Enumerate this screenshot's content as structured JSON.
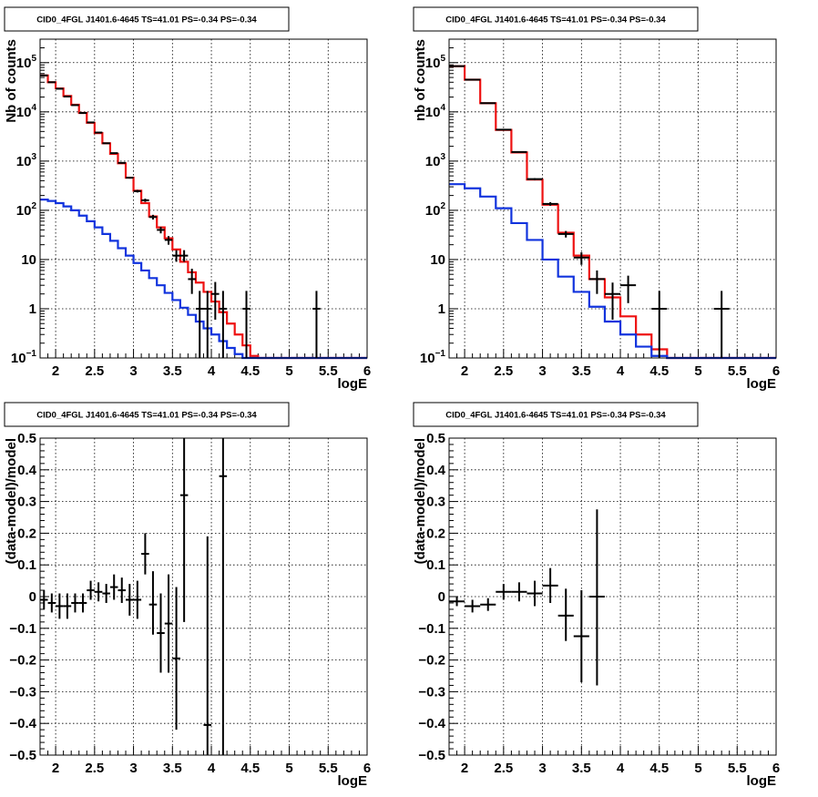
{
  "colors": {
    "model_total": "#ee1111",
    "model_source": "#1133dd",
    "data": "#000000",
    "grid": "#000000"
  },
  "chart_data": [
    {
      "id": "counts_left",
      "type": "line",
      "title": "CID0_4FGL J1401.6-4645 TS=41.01 PS=-0.34 PS=-0.34",
      "xlabel": "logE",
      "ylabel": "Nb of counts",
      "xlim": [
        1.8,
        6
      ],
      "ylim": [
        0.1,
        300000
      ],
      "yscale": "log",
      "grid": true,
      "xticks": [
        "2",
        "2.5",
        "3",
        "3.5",
        "4",
        "4.5",
        "5",
        "5.5",
        "6"
      ],
      "yticks": [
        {
          "v": 0.1,
          "b": "10",
          "e": "−1"
        },
        {
          "v": 1,
          "b": "1",
          "e": ""
        },
        {
          "v": 10,
          "b": "10",
          "e": ""
        },
        {
          "v": 100,
          "b": "10",
          "e": "2"
        },
        {
          "v": 1000,
          "b": "10",
          "e": "3"
        },
        {
          "v": 10000,
          "b": "10",
          "e": "4"
        },
        {
          "v": 100000,
          "b": "10",
          "e": "5"
        }
      ],
      "bin_edges": [
        1.8,
        1.9,
        2.0,
        2.1,
        2.2,
        2.3,
        2.4,
        2.5,
        2.6,
        2.7,
        2.8,
        2.9,
        3.0,
        3.1,
        3.2,
        3.3,
        3.4,
        3.5,
        3.6,
        3.7,
        3.8,
        3.9,
        4.0,
        4.1,
        4.2,
        4.3,
        4.4,
        4.5,
        4.6,
        6.0
      ],
      "series": [
        {
          "name": "",
          "kind": "model_total",
          "values": [
            55000,
            40000,
            30000,
            21000,
            14000,
            9500,
            6000,
            3700,
            2300,
            1400,
            900,
            460,
            250,
            140,
            75,
            45,
            27,
            16,
            9,
            5.5,
            3.4,
            2.2,
            1.4,
            0.85,
            0.5,
            0.3,
            0.18,
            0.11,
            0.09
          ]
        },
        {
          "name": "",
          "kind": "model_source",
          "values": [
            165,
            155,
            140,
            120,
            100,
            78,
            60,
            45,
            33,
            24,
            17,
            12,
            8.5,
            6,
            4.2,
            3,
            2.1,
            1.5,
            1.05,
            0.75,
            0.55,
            0.4,
            0.3,
            0.22,
            0.16,
            0.12,
            0.1,
            0.09,
            0.09
          ]
        }
      ],
      "points": [
        {
          "x": 1.85,
          "y": 55000,
          "xerr": 0.05,
          "ylo": 54800,
          "yhi": 55200
        },
        {
          "x": 1.95,
          "y": 40000,
          "xerr": 0.05,
          "ylo": 39800,
          "yhi": 40200
        },
        {
          "x": 2.05,
          "y": 29500,
          "xerr": 0.05,
          "ylo": 29300,
          "yhi": 29700
        },
        {
          "x": 2.15,
          "y": 20500,
          "xerr": 0.05,
          "ylo": 20350,
          "yhi": 20650
        },
        {
          "x": 2.25,
          "y": 13700,
          "xerr": 0.05,
          "ylo": 13580,
          "yhi": 13820
        },
        {
          "x": 2.35,
          "y": 9500,
          "xerr": 0.05,
          "ylo": 9400,
          "yhi": 9600
        },
        {
          "x": 2.45,
          "y": 6100,
          "xerr": 0.05,
          "ylo": 6020,
          "yhi": 6180
        },
        {
          "x": 2.55,
          "y": 3800,
          "xerr": 0.05,
          "ylo": 3740,
          "yhi": 3860
        },
        {
          "x": 2.65,
          "y": 2300,
          "xerr": 0.05,
          "ylo": 2250,
          "yhi": 2350
        },
        {
          "x": 2.75,
          "y": 1450,
          "xerr": 0.05,
          "ylo": 1410,
          "yhi": 1490
        },
        {
          "x": 2.85,
          "y": 920,
          "xerr": 0.05,
          "ylo": 890,
          "yhi": 950
        },
        {
          "x": 2.95,
          "y": 460,
          "xerr": 0.05,
          "ylo": 440,
          "yhi": 480
        },
        {
          "x": 3.05,
          "y": 245,
          "xerr": 0.05,
          "ylo": 230,
          "yhi": 260
        },
        {
          "x": 3.15,
          "y": 160,
          "xerr": 0.05,
          "ylo": 148,
          "yhi": 172
        },
        {
          "x": 3.25,
          "y": 73,
          "xerr": 0.05,
          "ylo": 65,
          "yhi": 81
        },
        {
          "x": 3.35,
          "y": 40,
          "xerr": 0.05,
          "ylo": 34,
          "yhi": 46
        },
        {
          "x": 3.45,
          "y": 25,
          "xerr": 0.05,
          "ylo": 20,
          "yhi": 30
        },
        {
          "x": 3.55,
          "y": 12,
          "xerr": 0.05,
          "ylo": 9,
          "yhi": 15.5
        },
        {
          "x": 3.65,
          "y": 12,
          "xerr": 0.05,
          "ylo": 9,
          "yhi": 15.5
        },
        {
          "x": 3.75,
          "y": 4,
          "xerr": 0.05,
          "ylo": 2,
          "yhi": 6.5
        },
        {
          "x": 3.85,
          "y": 1,
          "xerr": 0.05,
          "ylo": 0.1,
          "yhi": 2.3
        },
        {
          "x": 3.95,
          "y": 1,
          "xerr": 0.05,
          "ylo": 0.1,
          "yhi": 2.3
        },
        {
          "x": 4.05,
          "y": 2,
          "xerr": 0.05,
          "ylo": 0.6,
          "yhi": 3.5
        },
        {
          "x": 4.15,
          "y": 1,
          "xerr": 0.05,
          "ylo": 0.1,
          "yhi": 2.3
        },
        {
          "x": 4.45,
          "y": 1,
          "xerr": 0.05,
          "ylo": 0.1,
          "yhi": 2.3
        },
        {
          "x": 5.35,
          "y": 1,
          "xerr": 0.05,
          "ylo": 0.1,
          "yhi": 2.3
        }
      ]
    },
    {
      "id": "counts_right",
      "type": "line",
      "title": "CID0_4FGL J1401.6-4645 TS=41.01 PS=-0.34 PS=-0.34",
      "xlabel": "logE",
      "ylabel": "nb of counts",
      "xlim": [
        1.8,
        6
      ],
      "ylim": [
        0.1,
        300000
      ],
      "yscale": "log",
      "grid": true,
      "xticks": [
        "2",
        "2.5",
        "3",
        "3.5",
        "4",
        "4.5",
        "5",
        "5.5",
        "6"
      ],
      "yticks": [
        {
          "v": 0.1,
          "b": "10",
          "e": "−1"
        },
        {
          "v": 1,
          "b": "1",
          "e": ""
        },
        {
          "v": 10,
          "b": "10",
          "e": ""
        },
        {
          "v": 100,
          "b": "10",
          "e": "2"
        },
        {
          "v": 1000,
          "b": "10",
          "e": "3"
        },
        {
          "v": 10000,
          "b": "10",
          "e": "4"
        },
        {
          "v": 100000,
          "b": "10",
          "e": "5"
        }
      ],
      "bin_edges": [
        1.8,
        2.0,
        2.2,
        2.4,
        2.6,
        2.8,
        3.0,
        3.2,
        3.4,
        3.6,
        3.8,
        4.0,
        4.2,
        4.4,
        4.6,
        4.8,
        6.0
      ],
      "series": [
        {
          "name": "",
          "kind": "model_total",
          "values": [
            85000,
            45000,
            15000,
            4300,
            1500,
            420,
            130,
            35,
            12,
            4,
            1.7,
            0.7,
            0.3,
            0.15,
            0.1,
            0.1
          ]
        },
        {
          "name": "",
          "kind": "model_source",
          "values": [
            340,
            280,
            190,
            110,
            55,
            25,
            10,
            4.5,
            2.2,
            1.1,
            0.55,
            0.3,
            0.17,
            0.11,
            0.1,
            0.1
          ]
        }
      ],
      "points": [
        {
          "x": 1.9,
          "y": 85000,
          "xerr": 0.1,
          "ylo": 84700,
          "yhi": 85300
        },
        {
          "x": 2.1,
          "y": 45000,
          "xerr": 0.1,
          "ylo": 44700,
          "yhi": 45300
        },
        {
          "x": 2.3,
          "y": 15000,
          "xerr": 0.1,
          "ylo": 14850,
          "yhi": 15150
        },
        {
          "x": 2.5,
          "y": 4350,
          "xerr": 0.1,
          "ylo": 4280,
          "yhi": 4420
        },
        {
          "x": 2.7,
          "y": 1530,
          "xerr": 0.1,
          "ylo": 1490,
          "yhi": 1570
        },
        {
          "x": 2.9,
          "y": 430,
          "xerr": 0.1,
          "ylo": 410,
          "yhi": 450
        },
        {
          "x": 3.1,
          "y": 135,
          "xerr": 0.1,
          "ylo": 124,
          "yhi": 146
        },
        {
          "x": 3.3,
          "y": 33,
          "xerr": 0.1,
          "ylo": 28,
          "yhi": 38
        },
        {
          "x": 3.5,
          "y": 11,
          "xerr": 0.1,
          "ylo": 7.8,
          "yhi": 14
        },
        {
          "x": 3.7,
          "y": 4,
          "xerr": 0.1,
          "ylo": 2,
          "yhi": 6
        },
        {
          "x": 3.9,
          "y": 2,
          "xerr": 0.1,
          "ylo": 0.6,
          "yhi": 3.4
        },
        {
          "x": 4.1,
          "y": 3,
          "xerr": 0.1,
          "ylo": 1.3,
          "yhi": 4.7
        },
        {
          "x": 4.5,
          "y": 1,
          "xerr": 0.1,
          "ylo": 0.1,
          "yhi": 2.3
        },
        {
          "x": 5.3,
          "y": 1,
          "xerr": 0.1,
          "ylo": 0.1,
          "yhi": 2.3
        }
      ]
    },
    {
      "id": "resid_left",
      "type": "scatter",
      "title": "CID0_4FGL J1401.6-4645 TS=41.01 PS=-0.34 PS=-0.34",
      "xlabel": "logE",
      "ylabel": "(data-model)/model",
      "xlim": [
        1.8,
        6
      ],
      "ylim": [
        -0.5,
        0.5
      ],
      "yscale": "linear",
      "grid": true,
      "xticks": [
        "2",
        "2.5",
        "3",
        "3.5",
        "4",
        "4.5",
        "5",
        "5.5",
        "6"
      ],
      "yticks": [
        {
          "v": -0.5,
          "b": "−0.5",
          "e": ""
        },
        {
          "v": -0.4,
          "b": "−0.4",
          "e": ""
        },
        {
          "v": -0.3,
          "b": "−0.3",
          "e": ""
        },
        {
          "v": -0.2,
          "b": "−0.2",
          "e": ""
        },
        {
          "v": -0.1,
          "b": "−0.1",
          "e": ""
        },
        {
          "v": 0,
          "b": "0",
          "e": ""
        },
        {
          "v": 0.1,
          "b": "0.1",
          "e": ""
        },
        {
          "v": 0.2,
          "b": "0.2",
          "e": ""
        },
        {
          "v": 0.3,
          "b": "0.3",
          "e": ""
        },
        {
          "v": 0.4,
          "b": "0.4",
          "e": ""
        },
        {
          "v": 0.5,
          "b": "0.5",
          "e": ""
        }
      ],
      "points": [
        {
          "x": 1.85,
          "y": -0.01,
          "xerr": 0.05,
          "ylo": -0.04,
          "yhi": 0.02
        },
        {
          "x": 1.95,
          "y": -0.02,
          "xerr": 0.05,
          "ylo": -0.05,
          "yhi": 0.01
        },
        {
          "x": 2.05,
          "y": -0.03,
          "xerr": 0.05,
          "ylo": -0.07,
          "yhi": 0.01
        },
        {
          "x": 2.15,
          "y": -0.03,
          "xerr": 0.05,
          "ylo": -0.07,
          "yhi": 0.01
        },
        {
          "x": 2.25,
          "y": -0.02,
          "xerr": 0.05,
          "ylo": -0.05,
          "yhi": 0.01
        },
        {
          "x": 2.35,
          "y": -0.02,
          "xerr": 0.05,
          "ylo": -0.05,
          "yhi": 0.01
        },
        {
          "x": 2.45,
          "y": 0.02,
          "xerr": 0.05,
          "ylo": -0.01,
          "yhi": 0.05
        },
        {
          "x": 2.55,
          "y": 0.015,
          "xerr": 0.05,
          "ylo": -0.015,
          "yhi": 0.045
        },
        {
          "x": 2.65,
          "y": 0.01,
          "xerr": 0.05,
          "ylo": -0.02,
          "yhi": 0.04
        },
        {
          "x": 2.75,
          "y": 0.03,
          "xerr": 0.05,
          "ylo": -0.01,
          "yhi": 0.07
        },
        {
          "x": 2.85,
          "y": 0.02,
          "xerr": 0.05,
          "ylo": -0.02,
          "yhi": 0.06
        },
        {
          "x": 2.95,
          "y": -0.01,
          "xerr": 0.05,
          "ylo": -0.06,
          "yhi": 0.04
        },
        {
          "x": 3.05,
          "y": -0.01,
          "xerr": 0.05,
          "ylo": -0.07,
          "yhi": 0.05
        },
        {
          "x": 3.15,
          "y": 0.135,
          "xerr": 0.05,
          "ylo": 0.07,
          "yhi": 0.2
        },
        {
          "x": 3.25,
          "y": -0.025,
          "xerr": 0.05,
          "ylo": -0.12,
          "yhi": 0.08
        },
        {
          "x": 3.35,
          "y": -0.115,
          "xerr": 0.05,
          "ylo": -0.24,
          "yhi": 0.01
        },
        {
          "x": 3.45,
          "y": -0.085,
          "xerr": 0.05,
          "ylo": -0.24,
          "yhi": 0.07
        },
        {
          "x": 3.55,
          "y": -0.195,
          "xerr": 0.05,
          "ylo": -0.42,
          "yhi": 0.03
        },
        {
          "x": 3.65,
          "y": 0.32,
          "xerr": 0.05,
          "ylo": -0.08,
          "yhi": 0.5
        },
        {
          "x": 3.95,
          "y": -0.405,
          "xerr": 0.05,
          "ylo": -0.5,
          "yhi": 0.19
        },
        {
          "x": 4.15,
          "y": 0.38,
          "xerr": 0.05,
          "ylo": -0.5,
          "yhi": 0.5
        }
      ]
    },
    {
      "id": "resid_right",
      "type": "scatter",
      "title": "CID0_4FGL J1401.6-4645 TS=41.01 PS=-0.34 PS=-0.34",
      "xlabel": "logE",
      "ylabel": "(data-model)/model",
      "xlim": [
        1.8,
        6
      ],
      "ylim": [
        -0.5,
        0.5
      ],
      "yscale": "linear",
      "grid": true,
      "xticks": [
        "2",
        "2.5",
        "3",
        "3.5",
        "4",
        "4.5",
        "5",
        "5.5",
        "6"
      ],
      "yticks": [
        {
          "v": -0.5,
          "b": "−0.5",
          "e": ""
        },
        {
          "v": -0.4,
          "b": "−0.4",
          "e": ""
        },
        {
          "v": -0.3,
          "b": "−0.3",
          "e": ""
        },
        {
          "v": -0.2,
          "b": "−0.2",
          "e": ""
        },
        {
          "v": -0.1,
          "b": "−0.1",
          "e": ""
        },
        {
          "v": 0,
          "b": "0",
          "e": ""
        },
        {
          "v": 0.1,
          "b": "0.1",
          "e": ""
        },
        {
          "v": 0.2,
          "b": "0.2",
          "e": ""
        },
        {
          "v": 0.3,
          "b": "0.3",
          "e": ""
        },
        {
          "v": 0.4,
          "b": "0.4",
          "e": ""
        },
        {
          "v": 0.5,
          "b": "0.5",
          "e": ""
        }
      ],
      "points": [
        {
          "x": 1.9,
          "y": -0.015,
          "xerr": 0.1,
          "ylo": -0.03,
          "yhi": 0.0
        },
        {
          "x": 2.1,
          "y": -0.03,
          "xerr": 0.1,
          "ylo": -0.05,
          "yhi": -0.01
        },
        {
          "x": 2.3,
          "y": -0.025,
          "xerr": 0.1,
          "ylo": -0.045,
          "yhi": -0.005
        },
        {
          "x": 2.5,
          "y": 0.015,
          "xerr": 0.1,
          "ylo": -0.01,
          "yhi": 0.04
        },
        {
          "x": 2.7,
          "y": 0.015,
          "xerr": 0.1,
          "ylo": -0.015,
          "yhi": 0.045
        },
        {
          "x": 2.9,
          "y": 0.01,
          "xerr": 0.1,
          "ylo": -0.03,
          "yhi": 0.05
        },
        {
          "x": 3.1,
          "y": 0.035,
          "xerr": 0.1,
          "ylo": -0.02,
          "yhi": 0.09
        },
        {
          "x": 3.3,
          "y": -0.06,
          "xerr": 0.1,
          "ylo": -0.14,
          "yhi": 0.025
        },
        {
          "x": 3.5,
          "y": -0.125,
          "xerr": 0.1,
          "ylo": -0.27,
          "yhi": 0.02
        },
        {
          "x": 3.7,
          "y": 0.0,
          "xerr": 0.1,
          "ylo": -0.28,
          "yhi": 0.275
        }
      ]
    }
  ]
}
